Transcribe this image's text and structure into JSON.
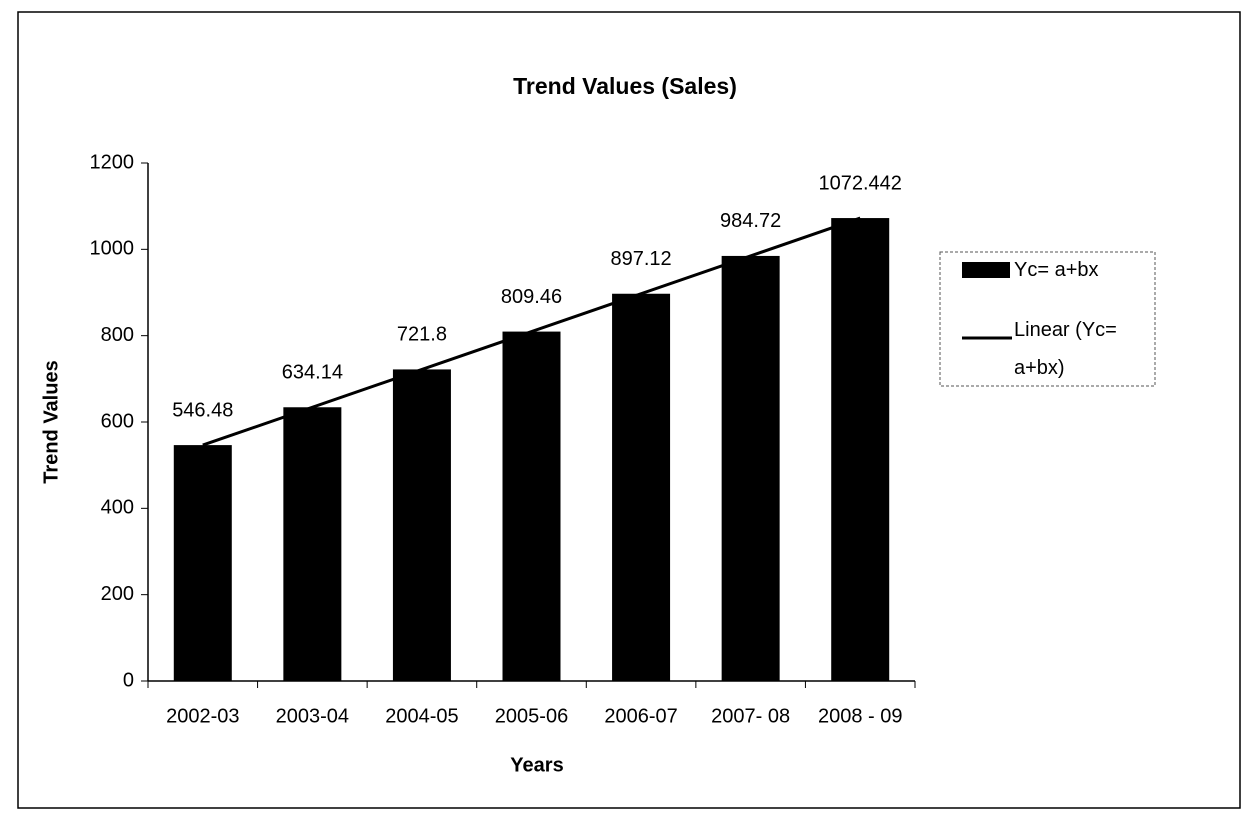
{
  "chart_data": {
    "type": "bar",
    "title": "Trend Values (Sales)",
    "x_label": "Years",
    "y_label": "Trend Values",
    "categories": [
      "2002-03",
      "2003-04",
      "2004-05",
      "2005-06",
      "2006-07",
      "2007- 08",
      "2008 - 09"
    ],
    "series": [
      {
        "name": "Yc= a+bx",
        "color": "#000000",
        "values": [
          546.48,
          634.14,
          721.8,
          809.46,
          897.12,
          984.72,
          1072.442
        ]
      }
    ],
    "trendline": {
      "name": "Linear (Yc= a+bx)",
      "kind": "linear",
      "color": "#000000"
    },
    "ylim": [
      0,
      1200
    ],
    "yticks": [
      0,
      200,
      400,
      600,
      800,
      1000,
      1200
    ],
    "grid": false,
    "legend": "right"
  }
}
